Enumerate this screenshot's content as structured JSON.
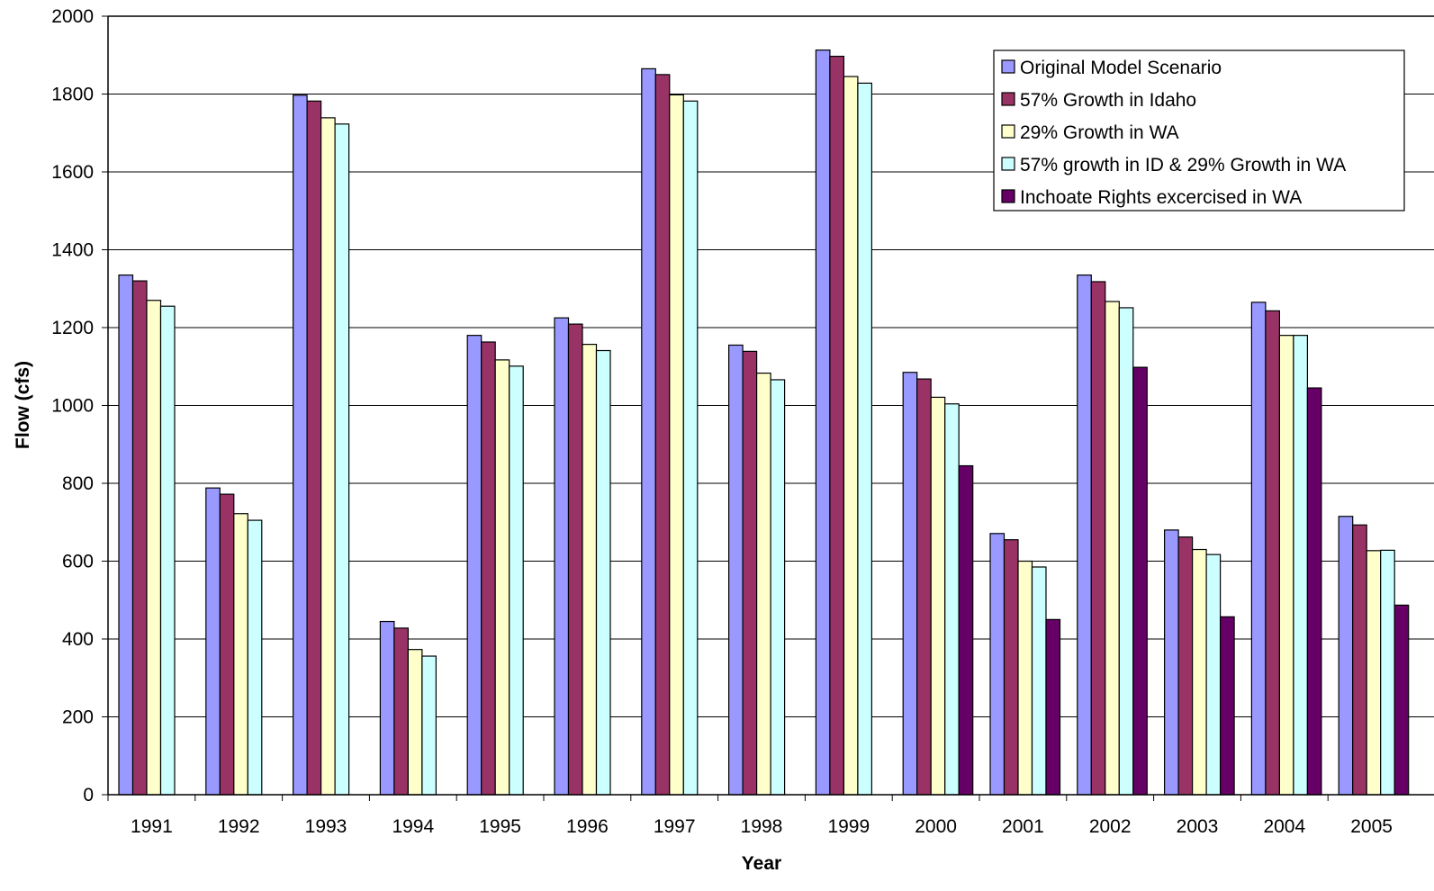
{
  "chart_data": {
    "type": "bar",
    "title": "",
    "xlabel": "Year",
    "ylabel": "Flow (cfs)",
    "ylim": [
      0,
      2000
    ],
    "yticks": [
      0,
      200,
      400,
      600,
      800,
      1000,
      1200,
      1400,
      1600,
      1800,
      2000
    ],
    "grid": true,
    "legend_position": "top-right",
    "categories": [
      "1991",
      "1992",
      "1993",
      "1994",
      "1995",
      "1996",
      "1997",
      "1998",
      "1999",
      "2000",
      "2001",
      "2002",
      "2003",
      "2004",
      "2005"
    ],
    "series": [
      {
        "name": "Original Model Scenario",
        "color": "#9999ff",
        "values": [
          1335,
          788,
          1797,
          445,
          1180,
          1225,
          1865,
          1155,
          1913,
          1085,
          671,
          1335,
          680,
          1265,
          715
        ]
      },
      {
        "name": "57% Growth in Idaho",
        "color": "#993366",
        "values": [
          1320,
          772,
          1782,
          428,
          1163,
          1209,
          1850,
          1139,
          1897,
          1068,
          655,
          1318,
          662,
          1243,
          693
        ]
      },
      {
        "name": "29% Growth in WA",
        "color": "#ffffcc",
        "values": [
          1270,
          722,
          1739,
          373,
          1117,
          1157,
          1798,
          1083,
          1845,
          1021,
          600,
          1267,
          630,
          1180,
          627
        ]
      },
      {
        "name": "57% growth in ID & 29% Growth in WA",
        "color": "#ccffff",
        "values": [
          1255,
          705,
          1723,
          356,
          1101,
          1141,
          1782,
          1066,
          1828,
          1004,
          585,
          1251,
          617,
          1180,
          628
        ]
      },
      {
        "name": "Inchoate Rights excercised in WA",
        "color": "#660066",
        "values": [
          null,
          null,
          null,
          null,
          null,
          null,
          null,
          null,
          null,
          845,
          450,
          1098,
          457,
          1045,
          487
        ]
      }
    ]
  }
}
